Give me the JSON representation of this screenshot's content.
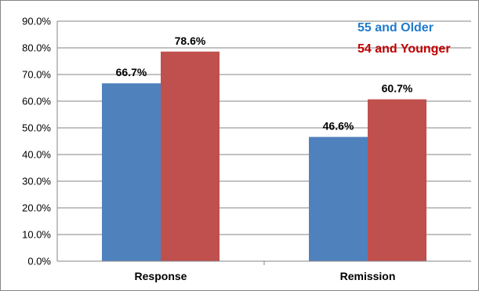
{
  "chart_data": {
    "type": "bar",
    "categories": [
      "Response",
      "Remission"
    ],
    "series": [
      {
        "name": "55 and Older",
        "values": [
          66.7,
          46.6
        ],
        "labels": [
          "66.7%",
          "46.6%"
        ],
        "color": "#4F81BD"
      },
      {
        "name": "54 and Younger",
        "values": [
          78.6,
          60.7
        ],
        "labels": [
          "78.6%",
          "60.7%"
        ],
        "color": "#C0504D"
      }
    ],
    "title": "",
    "xlabel": "",
    "ylabel": "",
    "ylim": [
      0,
      90
    ],
    "yticks": [
      "0.0%",
      "10.0%",
      "20.0%",
      "30.0%",
      "40.0%",
      "50.0%",
      "60.0%",
      "70.0%",
      "80.0%",
      "90.0%"
    ],
    "grid": true,
    "legend": "top-right",
    "legend_colors": [
      "#1F7ACD",
      "#C00000"
    ]
  }
}
